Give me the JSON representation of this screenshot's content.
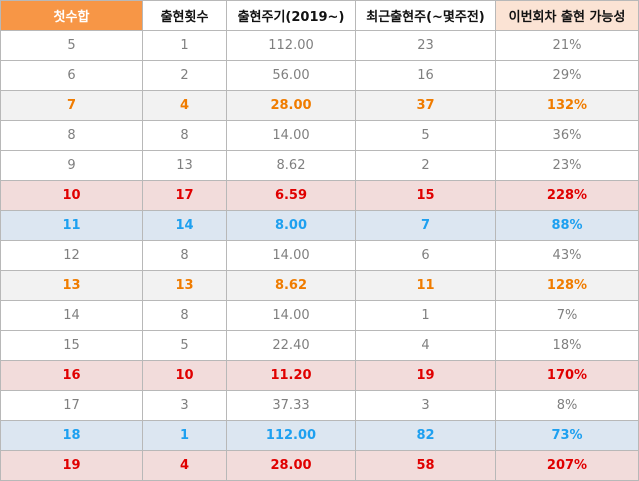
{
  "headers": [
    "첫수합",
    "출현횟수",
    "출현주기(2019~)",
    "최근출현주(~몇주전)",
    "이번회차 출현 가능성"
  ],
  "rows": [
    {
      "sum": "5",
      "count": "1",
      "cycle": "112.00",
      "recent": "23",
      "prob": "21%",
      "style": "plain"
    },
    {
      "sum": "6",
      "count": "2",
      "cycle": "56.00",
      "recent": "16",
      "prob": "29%",
      "style": "plain"
    },
    {
      "sum": "7",
      "count": "4",
      "cycle": "28.00",
      "recent": "37",
      "prob": "132%",
      "style": "orange"
    },
    {
      "sum": "8",
      "count": "8",
      "cycle": "14.00",
      "recent": "5",
      "prob": "36%",
      "style": "plain"
    },
    {
      "sum": "9",
      "count": "13",
      "cycle": "8.62",
      "recent": "2",
      "prob": "23%",
      "style": "plain"
    },
    {
      "sum": "10",
      "count": "17",
      "cycle": "6.59",
      "recent": "15",
      "prob": "228%",
      "style": "red"
    },
    {
      "sum": "11",
      "count": "14",
      "cycle": "8.00",
      "recent": "7",
      "prob": "88%",
      "style": "blue"
    },
    {
      "sum": "12",
      "count": "8",
      "cycle": "14.00",
      "recent": "6",
      "prob": "43%",
      "style": "plain"
    },
    {
      "sum": "13",
      "count": "13",
      "cycle": "8.62",
      "recent": "11",
      "prob": "128%",
      "style": "orange"
    },
    {
      "sum": "14",
      "count": "8",
      "cycle": "14.00",
      "recent": "1",
      "prob": "7%",
      "style": "plain"
    },
    {
      "sum": "15",
      "count": "5",
      "cycle": "22.40",
      "recent": "4",
      "prob": "18%",
      "style": "plain"
    },
    {
      "sum": "16",
      "count": "10",
      "cycle": "11.20",
      "recent": "19",
      "prob": "170%",
      "style": "red"
    },
    {
      "sum": "17",
      "count": "3",
      "cycle": "37.33",
      "recent": "3",
      "prob": "8%",
      "style": "plain"
    },
    {
      "sum": "18",
      "count": "1",
      "cycle": "112.00",
      "recent": "82",
      "prob": "73%",
      "style": "blue"
    },
    {
      "sum": "19",
      "count": "4",
      "cycle": "28.00",
      "recent": "58",
      "prob": "207%",
      "style": "red"
    }
  ],
  "colors": {
    "header_first_bg": "#f79646",
    "header_last_bg": "#fbe3d4",
    "orange_text": "#f07c00",
    "red_text": "#e00000",
    "blue_text": "#1ea0f0",
    "plain_text": "#7f7f7f"
  }
}
